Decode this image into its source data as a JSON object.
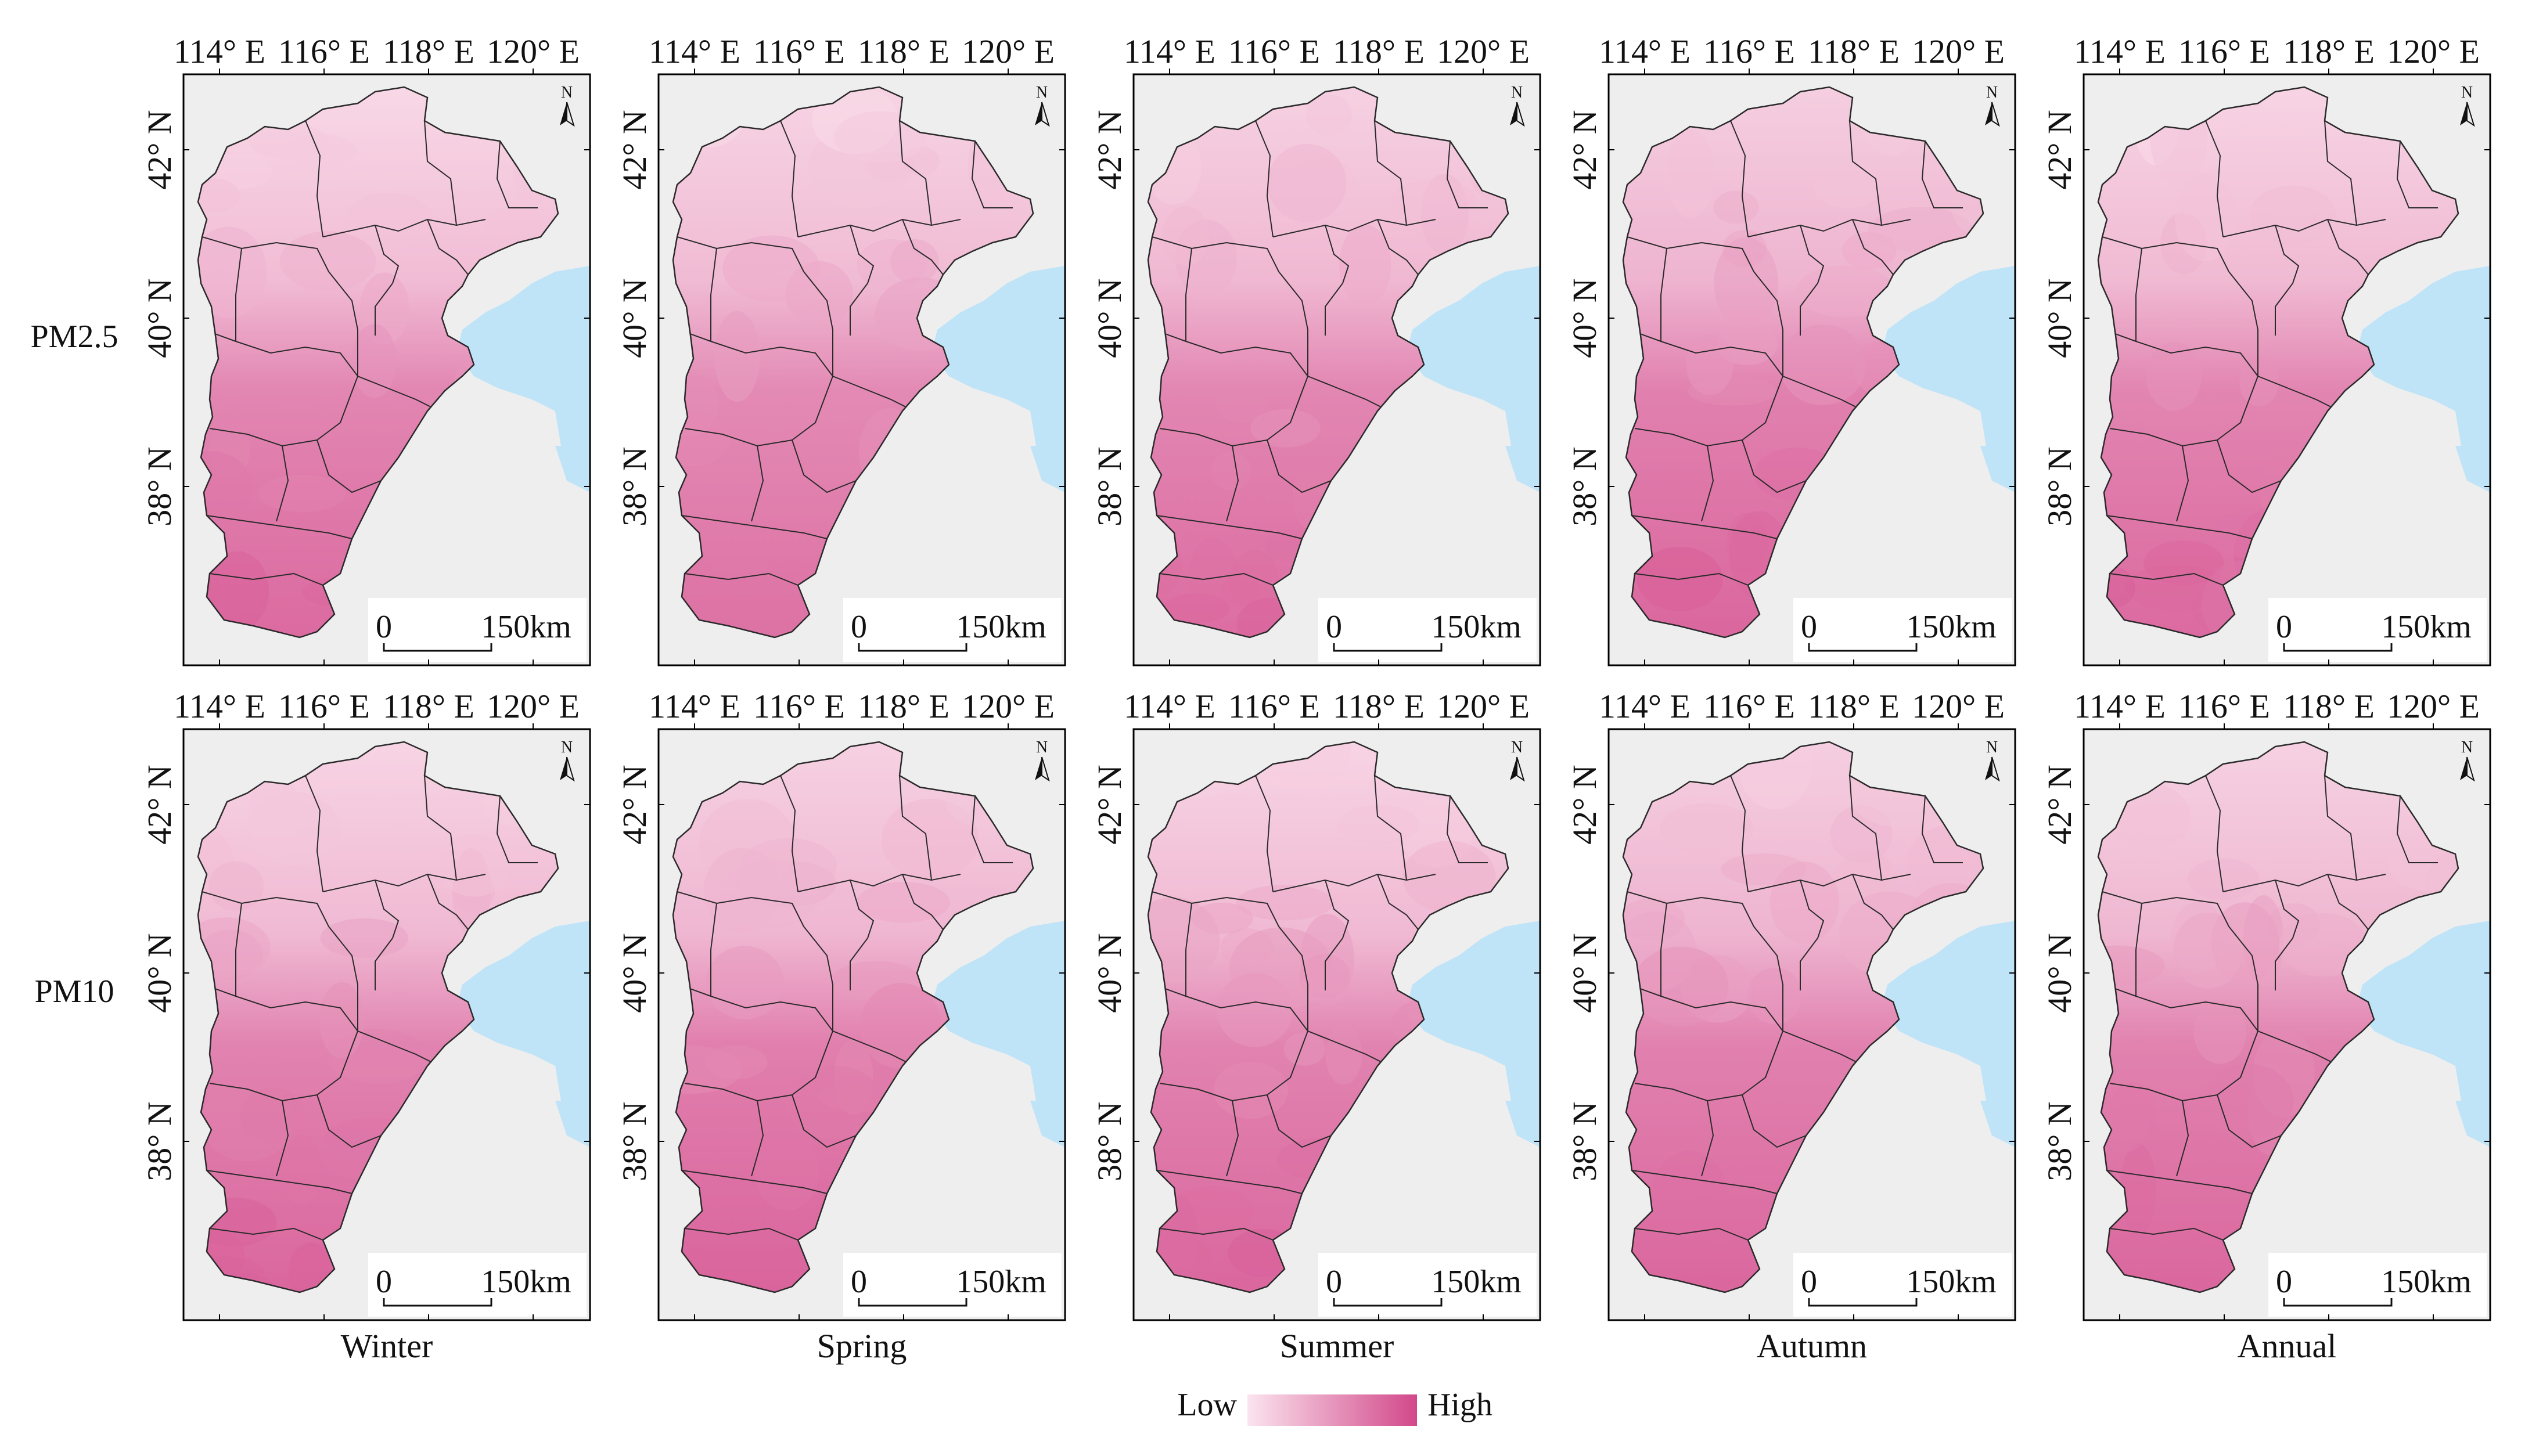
{
  "figure": {
    "rows": [
      {
        "label": "PM2.5"
      },
      {
        "label": "PM10"
      }
    ],
    "columns": [
      {
        "label": "Winter"
      },
      {
        "label": "Spring"
      },
      {
        "label": "Summer"
      },
      {
        "label": "Autumn"
      },
      {
        "label": "Annual"
      }
    ],
    "longitude_labels": [
      "114° E",
      "116° E",
      "118° E",
      "120° E"
    ],
    "latitude_labels": [
      "42° N",
      "40° N",
      "38° N"
    ],
    "scale_bar": {
      "start": "0",
      "end": "150km"
    },
    "north_arrow": {
      "letter": "N"
    },
    "legend": {
      "low_label": "Low",
      "high_label": "High",
      "low_color": "#fbe4ee",
      "high_color": "#d2488a"
    },
    "colors": {
      "sea": "#bfe3f7",
      "land_outside": "#eeeeee",
      "border": "#2a2a2a"
    },
    "panels": [
      {
        "row": "PM2.5",
        "column": "Winter",
        "north_level": 0.08,
        "south_level": 0.78
      },
      {
        "row": "PM2.5",
        "column": "Spring",
        "north_level": 0.1,
        "south_level": 0.74
      },
      {
        "row": "PM2.5",
        "column": "Summer",
        "north_level": 0.12,
        "south_level": 0.76
      },
      {
        "row": "PM2.5",
        "column": "Autumn",
        "north_level": 0.14,
        "south_level": 0.8
      },
      {
        "row": "PM2.5",
        "column": "Annual",
        "north_level": 0.1,
        "south_level": 0.78
      },
      {
        "row": "PM10",
        "column": "Winter",
        "north_level": 0.1,
        "south_level": 0.8
      },
      {
        "row": "PM10",
        "column": "Spring",
        "north_level": 0.12,
        "south_level": 0.82
      },
      {
        "row": "PM10",
        "column": "Summer",
        "north_level": 0.1,
        "south_level": 0.8
      },
      {
        "row": "PM10",
        "column": "Autumn",
        "north_level": 0.14,
        "south_level": 0.8
      },
      {
        "row": "PM10",
        "column": "Annual",
        "north_level": 0.12,
        "south_level": 0.8
      }
    ]
  }
}
